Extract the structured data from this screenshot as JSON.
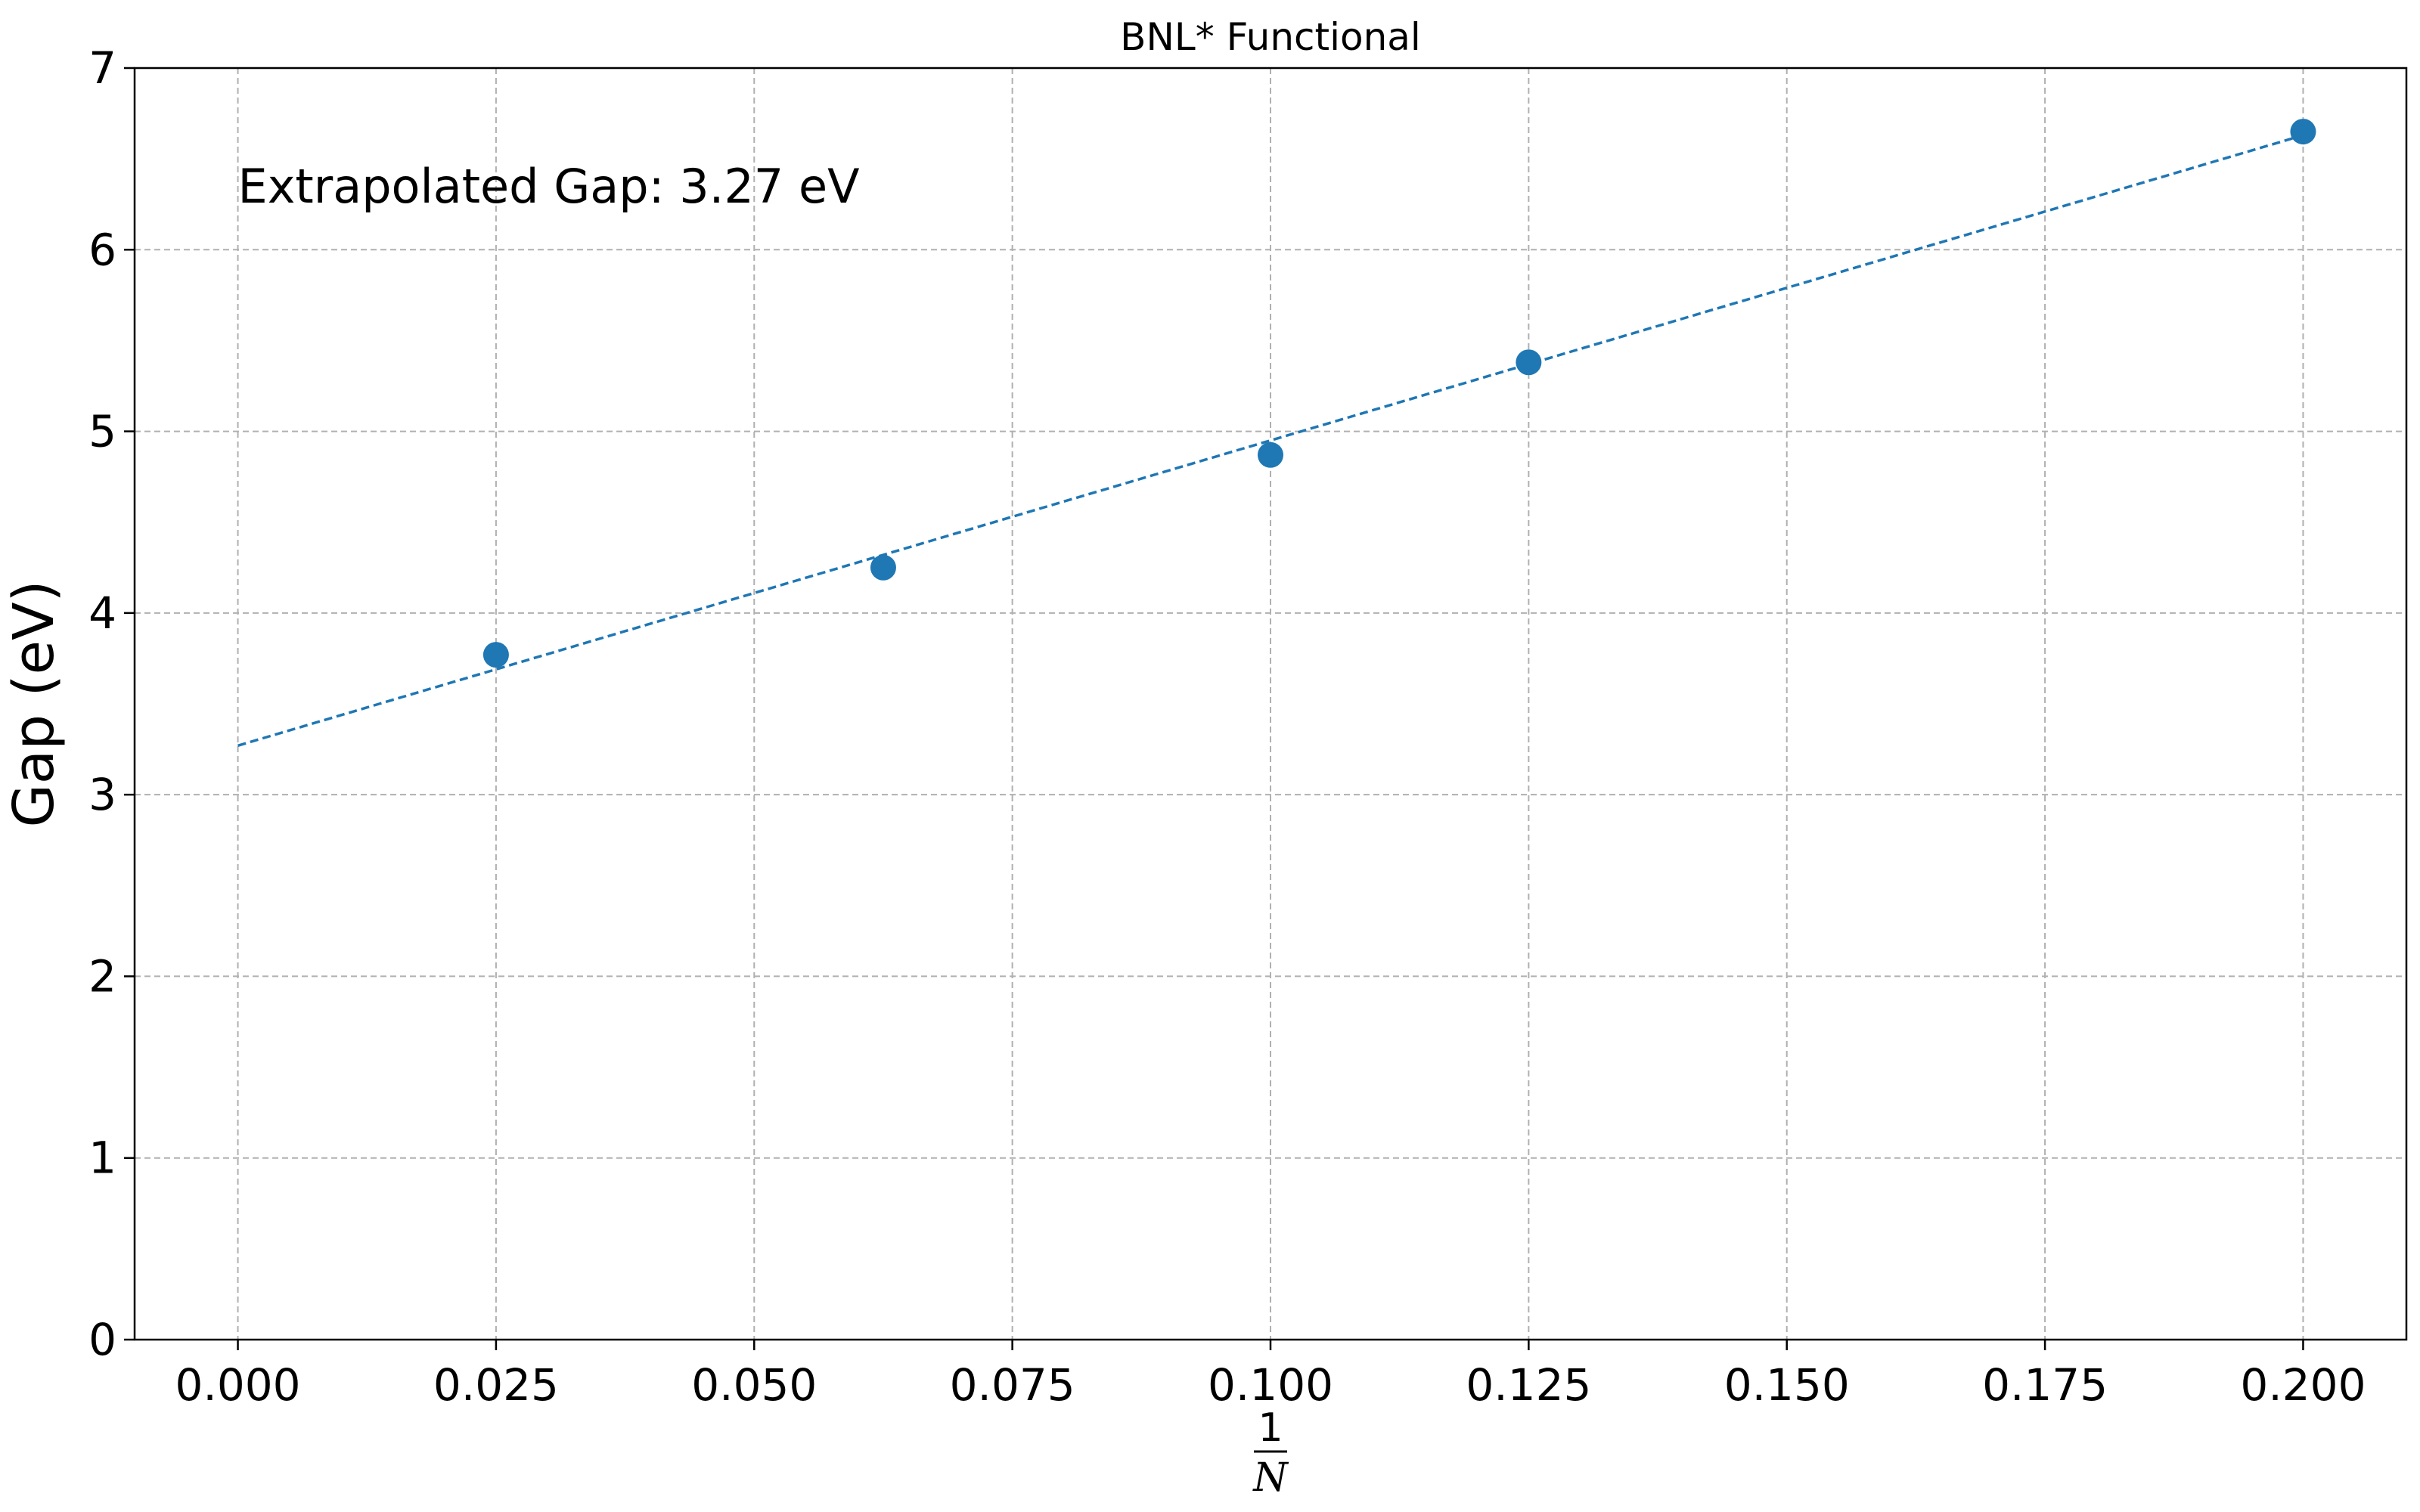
{
  "chart_data": {
    "type": "scatter",
    "title": "BNL* Functional",
    "xlabel_numerator": "1",
    "xlabel_denominator": "N",
    "ylabel": "Gap (eV)",
    "annotation": "Extrapolated Gap: 3.27 eV",
    "xlim": [
      -0.01,
      0.21
    ],
    "ylim": [
      0,
      7
    ],
    "x_ticks": [
      0.0,
      0.025,
      0.05,
      0.075,
      0.1,
      0.125,
      0.15,
      0.175,
      0.2
    ],
    "x_tick_labels": [
      "0.000",
      "0.025",
      "0.050",
      "0.075",
      "0.100",
      "0.125",
      "0.150",
      "0.175",
      "0.200"
    ],
    "y_ticks": [
      0,
      1,
      2,
      3,
      4,
      5,
      6,
      7
    ],
    "y_tick_labels": [
      "0",
      "1",
      "2",
      "3",
      "4",
      "5",
      "6",
      "7"
    ],
    "grid": true,
    "series": [
      {
        "kind": "points",
        "color": "#1f77b4",
        "x": [
          0.025,
          0.0625,
          0.1,
          0.125,
          0.2
        ],
        "y": [
          3.77,
          4.25,
          4.87,
          5.38,
          6.65
        ]
      },
      {
        "kind": "fit-line",
        "color": "#1f77b4",
        "style": "dashed",
        "x": [
          0.0,
          0.2
        ],
        "y": [
          3.27,
          6.63
        ]
      }
    ]
  }
}
